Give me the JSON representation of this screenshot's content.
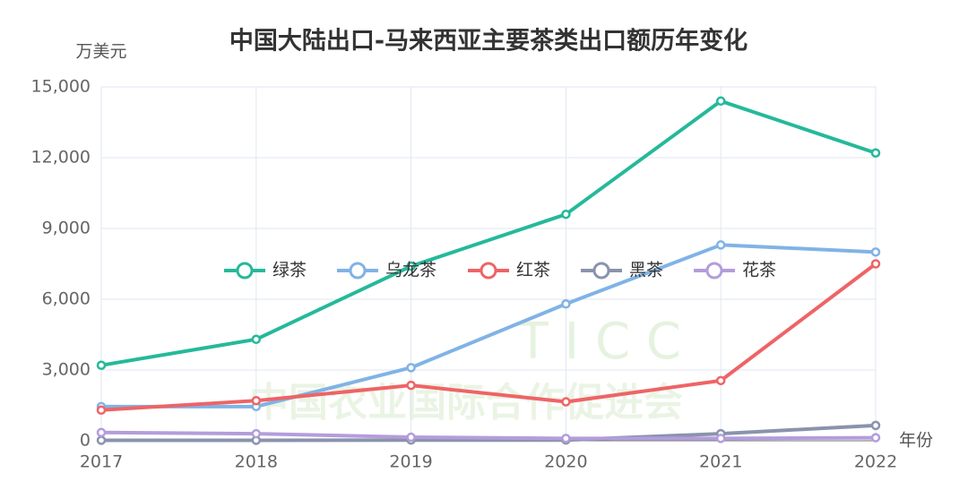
{
  "chart_data": {
    "type": "line",
    "title": "中国大陆出口-马来西亚主要茶类出口额历年变化",
    "y_label": "万美元",
    "x_label": "年份",
    "watermark": {
      "letters": "T I C C",
      "org": "中国农业国际合作促进会"
    },
    "x": [
      2017,
      2018,
      2019,
      2020,
      2021,
      2022
    ],
    "xlim": [
      2017,
      2022
    ],
    "xticks": [
      2017,
      2018,
      2019,
      2020,
      2021,
      2022
    ],
    "ylim": [
      0,
      15000
    ],
    "yticks": [
      0,
      {
        "value": 3000,
        "label": "3,000"
      },
      {
        "value": 6000,
        "label": "6,000"
      },
      {
        "value": 9000,
        "label": "9,000"
      },
      {
        "value": 12000,
        "label": "12,000"
      },
      {
        "value": 15000,
        "label": "15,000"
      }
    ],
    "grid": true,
    "legend": "center",
    "series": [
      {
        "name": "绿茶",
        "color": "#25b99a",
        "values": [
          3200,
          4300,
          7400,
          9600,
          14400,
          12200
        ]
      },
      {
        "name": "乌龙茶",
        "color": "#80b3e6",
        "values": [
          1450,
          1450,
          3100,
          5800,
          8300,
          8000
        ]
      },
      {
        "name": "红茶",
        "color": "#ee6466",
        "values": [
          1300,
          1700,
          2350,
          1650,
          2550,
          7500
        ]
      },
      {
        "name": "黑茶",
        "color": "#8a93ad",
        "values": [
          20,
          20,
          30,
          30,
          300,
          650
        ]
      },
      {
        "name": "花茶",
        "color": "#b39ddb",
        "values": [
          350,
          300,
          150,
          100,
          100,
          130
        ]
      }
    ]
  }
}
